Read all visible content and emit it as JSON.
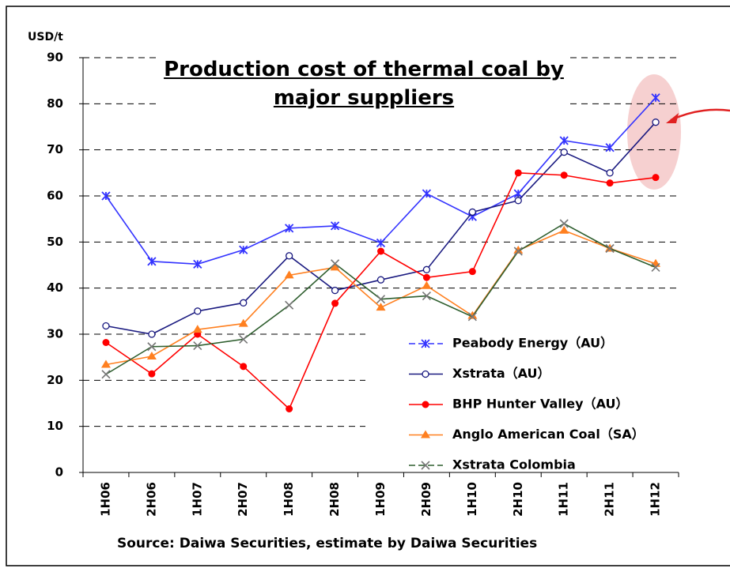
{
  "chart_data": {
    "type": "line",
    "title": "Production cost of thermal coal by major suppliers",
    "y_axis_label": "USD/t",
    "source": "Source: Daiwa Securities, estimate by Daiwa Securities",
    "categories": [
      "1H06",
      "2H06",
      "1H07",
      "2H07",
      "1H08",
      "2H08",
      "1H09",
      "2H09",
      "1H10",
      "2H10",
      "1H11",
      "2H11",
      "1H12"
    ],
    "series": [
      {
        "name": "Peabody Energy（AU）",
        "color": "#3333ff",
        "marker": "star",
        "values": [
          60,
          45.8,
          45.2,
          48.3,
          53,
          53.5,
          49.8,
          60.5,
          55.5,
          60.5,
          72,
          70.5,
          81.3
        ]
      },
      {
        "name": "Xstrata（AU）",
        "color": "#1a1a80",
        "marker": "diamond",
        "values": [
          31.8,
          30,
          35,
          36.8,
          47,
          39.5,
          41.8,
          44,
          56.5,
          59,
          69.5,
          65,
          76
        ]
      },
      {
        "name": "BHP Hunter Valley（AU）",
        "color": "#ff0000",
        "marker": "circle",
        "values": [
          28.2,
          21.4,
          30,
          23,
          13.8,
          36.7,
          48,
          42.3,
          43.6,
          65,
          64.5,
          62.8,
          64
        ]
      },
      {
        "name": "Anglo American Coal（SA）",
        "color": "#ff8020",
        "marker": "triangle",
        "values": [
          23.4,
          25.2,
          31,
          32.3,
          42.8,
          44.5,
          35.8,
          40.5,
          34,
          48.2,
          52.5,
          48.6,
          45.3
        ]
      },
      {
        "name": "Xstrata Colombia",
        "color": "#2e5e2e",
        "marker": "x",
        "values": [
          21.3,
          27.3,
          27.5,
          28.9,
          36.3,
          45.3,
          37.6,
          38.3,
          33.8,
          48,
          54,
          48.6,
          44.5
        ]
      }
    ],
    "ylim": [
      0,
      90
    ],
    "yticks": [
      0,
      10,
      20,
      30,
      40,
      50,
      60,
      70,
      80,
      90
    ],
    "grid": true
  }
}
